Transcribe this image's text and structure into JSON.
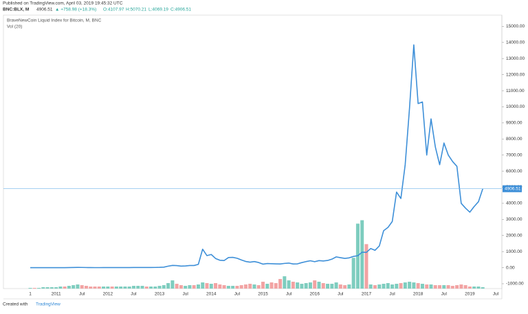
{
  "header": {
    "published": "Published on TradingView.com, April 03, 2019 19:45:32 UTC",
    "symbol": "BNC:BLX, M",
    "change": "▲ +758.98 (+18.3%)",
    "open": "O:4107.97",
    "high": "H:5070.21",
    "low": "L:4069.19",
    "close": "C:4906.51"
  },
  "footer": {
    "created": "Created with",
    "brand": "TradingView"
  },
  "chart_data": {
    "type": "line",
    "title": "BraveNewCoin Liquid Index for Bitcoin, M, BNC",
    "volume_title": "Vol (20)",
    "categories": [
      "1",
      null,
      null,
      null,
      null,
      null,
      "2011",
      null,
      null,
      null,
      null,
      null,
      "Jul",
      null,
      null,
      null,
      null,
      null,
      "2012",
      null,
      null,
      null,
      null,
      null,
      "Jul",
      null,
      null,
      null,
      null,
      null,
      "2013",
      null,
      null,
      null,
      null,
      null,
      "Jul",
      null,
      null,
      null,
      null,
      null,
      "2014",
      null,
      null,
      null,
      null,
      null,
      "Jul",
      null,
      null,
      null,
      null,
      null,
      "2015",
      null,
      null,
      null,
      null,
      null,
      "Jul",
      null,
      null,
      null,
      null,
      null,
      "2016",
      null,
      null,
      null,
      null,
      null,
      "Jul",
      null,
      null,
      null,
      null,
      null,
      "2017",
      null,
      null,
      null,
      null,
      null,
      "Jul",
      null,
      null,
      null,
      null,
      null,
      "2018",
      null,
      null,
      null,
      null,
      null,
      "Jul",
      null,
      null,
      null,
      null,
      null,
      "2019",
      null,
      null,
      null,
      null,
      null,
      "Jul"
    ],
    "series": [
      {
        "name": "BLX",
        "color": "#3d8fd8",
        "values": [
          0.07,
          0.06,
          0.06,
          0.2,
          0.28,
          0.3,
          0.5,
          0.9,
          0.8,
          3.5,
          8.7,
          16,
          13,
          8,
          5,
          3.2,
          3,
          4.7,
          5.5,
          4.9,
          4.9,
          5,
          5.2,
          6.7,
          9.3,
          10,
          12.4,
          11,
          12.5,
          13.5,
          20,
          33,
          93,
          139,
          129,
          97,
          106,
          135,
          133,
          205,
          1150,
          750,
          820,
          570,
          460,
          445,
          630,
          640,
          585,
          480,
          385,
          340,
          380,
          320,
          220,
          255,
          245,
          235,
          230,
          264,
          285,
          230,
          236,
          315,
          378,
          430,
          370,
          437,
          416,
          448,
          530,
          670,
          620,
          575,
          610,
          700,
          745,
          960,
          950,
          1190,
          1080,
          1350,
          2300,
          2500,
          2870,
          4700,
          4300,
          6400,
          9900,
          13850,
          10200,
          10300,
          7000,
          9250,
          7500,
          6400,
          7750,
          7000,
          6600,
          6300,
          4000,
          3700,
          3450,
          3800,
          4100,
          4906.51,
          null,
          null,
          null
        ]
      },
      {
        "name": "Vol",
        "axis": "y2",
        "up_color": "#7ecdbf",
        "down_color": "#f2a3a3",
        "values": [
          1,
          1,
          1,
          2,
          2,
          2,
          2,
          3,
          3,
          4,
          5,
          6,
          5,
          4,
          3,
          3,
          3,
          3,
          3,
          3,
          3,
          3,
          3,
          3,
          4,
          4,
          4,
          3,
          3,
          3,
          4,
          5,
          8,
          12,
          7,
          5,
          4,
          5,
          5,
          6,
          9,
          8,
          7,
          8,
          6,
          5,
          4,
          4,
          4,
          5,
          6,
          7,
          6,
          5,
          10,
          7,
          9,
          8,
          14,
          18,
          12,
          10,
          9,
          7,
          8,
          9,
          12,
          10,
          8,
          7,
          7,
          9,
          6,
          5,
          6,
          45,
          95,
          100,
          65,
          6,
          5,
          6,
          7,
          8,
          6,
          7,
          8,
          9,
          10,
          9,
          8,
          7,
          6,
          6,
          5,
          5,
          5,
          5,
          4,
          5,
          6,
          5,
          3,
          3,
          3,
          2,
          null,
          null,
          null
        ]
      }
    ],
    "ylim": [
      -1300,
      15700
    ],
    "yticks": [
      {
        "value": -1000,
        "label": "-1000.00"
      },
      {
        "value": 0,
        "label": "0.00"
      },
      {
        "value": 1000,
        "label": "1000.00"
      },
      {
        "value": 2000,
        "label": "2000.00"
      },
      {
        "value": 3000,
        "label": "3000.00"
      },
      {
        "value": 4000,
        "label": "4000.00"
      },
      {
        "value": 5000,
        "label": "5000.00"
      },
      {
        "value": 6000,
        "label": "6000.00"
      },
      {
        "value": 7000,
        "label": "7000.00"
      },
      {
        "value": 8000,
        "label": "8000.00"
      },
      {
        "value": 9000,
        "label": "9000.00"
      },
      {
        "value": 10000,
        "label": "10000.00"
      },
      {
        "value": 11000,
        "label": "11000.00"
      },
      {
        "value": 12000,
        "label": "12000.00"
      },
      {
        "value": 13000,
        "label": "13000.00"
      },
      {
        "value": 14000,
        "label": "14000.00"
      },
      {
        "value": 15000,
        "label": "15000.00"
      }
    ],
    "y2lim": [
      0,
      400
    ],
    "last_line_color": "#6fb3ea"
  }
}
